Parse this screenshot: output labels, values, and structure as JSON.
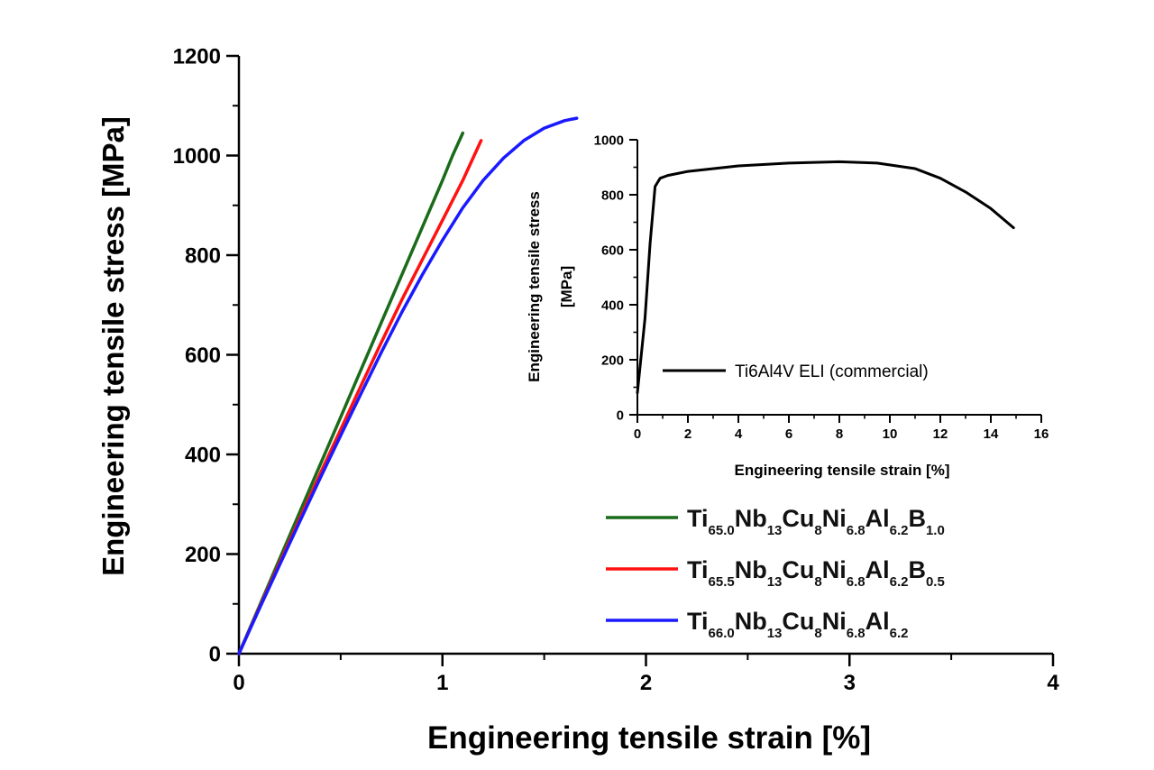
{
  "chart_data": [
    {
      "type": "line",
      "xlabel": "Engineering tensile strain [%]",
      "ylabel": "Engineering tensile stress [MPa]",
      "xlim": [
        0,
        4
      ],
      "ylim": [
        0,
        1200
      ],
      "x_ticks": [
        "0",
        "1",
        "2",
        "3",
        "4"
      ],
      "y_ticks": [
        "0",
        "200",
        "400",
        "600",
        "800",
        "1000",
        "1200"
      ],
      "legend_position": "bottom-right",
      "series": [
        {
          "name_parts": [
            [
              "Ti",
              ""
            ],
            [
              "65.0",
              "sub"
            ],
            [
              "Nb",
              ""
            ],
            [
              "13",
              "sub"
            ],
            [
              "Cu",
              ""
            ],
            [
              "8",
              "sub"
            ],
            [
              "Ni",
              ""
            ],
            [
              "6.8",
              "sub"
            ],
            [
              "Al",
              ""
            ],
            [
              "6.2",
              "sub"
            ],
            [
              "B",
              ""
            ],
            [
              "1.0",
              "sub"
            ]
          ],
          "color": "#1a6b1a",
          "x": [
            0,
            0.1,
            0.2,
            0.3,
            0.4,
            0.5,
            0.6,
            0.7,
            0.8,
            0.9,
            1.0,
            1.05,
            1.1
          ],
          "y": [
            0,
            95,
            190,
            285,
            380,
            475,
            570,
            665,
            760,
            855,
            950,
            1000,
            1045
          ]
        },
        {
          "name_parts": [
            [
              "Ti",
              ""
            ],
            [
              "65.5",
              "sub"
            ],
            [
              "Nb",
              ""
            ],
            [
              "13",
              "sub"
            ],
            [
              "Cu",
              ""
            ],
            [
              "8",
              "sub"
            ],
            [
              "Ni",
              ""
            ],
            [
              "6.8",
              "sub"
            ],
            [
              "Al",
              ""
            ],
            [
              "6.2",
              "sub"
            ],
            [
              "B",
              ""
            ],
            [
              "0.5",
              "sub"
            ]
          ],
          "color": "#ff1111",
          "x": [
            0,
            0.1,
            0.2,
            0.3,
            0.4,
            0.5,
            0.6,
            0.7,
            0.8,
            0.9,
            1.0,
            1.1,
            1.19
          ],
          "y": [
            0,
            92,
            182,
            272,
            362,
            450,
            538,
            625,
            710,
            790,
            870,
            950,
            1030
          ]
        },
        {
          "name_parts": [
            [
              "Ti",
              ""
            ],
            [
              "66.0",
              "sub"
            ],
            [
              "Nb",
              ""
            ],
            [
              "13",
              "sub"
            ],
            [
              "Cu",
              ""
            ],
            [
              "8",
              "sub"
            ],
            [
              "Ni",
              ""
            ],
            [
              "6.8",
              "sub"
            ],
            [
              "Al",
              ""
            ],
            [
              "6.2",
              "sub"
            ]
          ],
          "color": "#1a1aff",
          "x": [
            0,
            0.1,
            0.2,
            0.3,
            0.4,
            0.5,
            0.6,
            0.7,
            0.8,
            0.9,
            1.0,
            1.1,
            1.2,
            1.3,
            1.4,
            1.5,
            1.6,
            1.66
          ],
          "y": [
            0,
            90,
            178,
            266,
            353,
            438,
            522,
            605,
            685,
            760,
            830,
            895,
            950,
            995,
            1030,
            1055,
            1070,
            1075
          ]
        }
      ]
    },
    {
      "type": "line",
      "xlabel": "Engineering tensile strain [%]",
      "ylabel_lines": [
        "Engineering tensile stress",
        "[MPa]"
      ],
      "xlim": [
        0,
        16
      ],
      "ylim": [
        0,
        1000
      ],
      "x_ticks": [
        "0",
        "2",
        "4",
        "6",
        "8",
        "10",
        "12",
        "14",
        "16"
      ],
      "y_ticks": [
        "0",
        "200",
        "400",
        "600",
        "800",
        "1000"
      ],
      "legend_position": "bottom-center",
      "series": [
        {
          "name": "Ti6Al4V ELI (commercial)",
          "color": "#000000",
          "x": [
            0,
            0.3,
            0.5,
            0.7,
            0.9,
            1.2,
            2,
            4,
            6,
            8,
            9.5,
            11,
            12,
            13,
            14,
            14.9
          ],
          "y": [
            80,
            350,
            620,
            830,
            860,
            870,
            885,
            905,
            915,
            920,
            915,
            895,
            860,
            810,
            750,
            680
          ]
        }
      ]
    }
  ]
}
